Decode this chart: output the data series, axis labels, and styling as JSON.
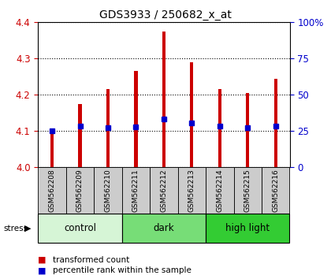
{
  "title": "GDS3933 / 250682_x_at",
  "samples": [
    "GSM562208",
    "GSM562209",
    "GSM562210",
    "GSM562211",
    "GSM562212",
    "GSM562213",
    "GSM562214",
    "GSM562215",
    "GSM562216"
  ],
  "bar_tops": [
    4.101,
    4.175,
    4.215,
    4.265,
    4.375,
    4.29,
    4.215,
    4.205,
    4.245
  ],
  "bar_bottom": 4.0,
  "blue_markers": [
    4.101,
    4.113,
    4.11,
    4.112,
    4.133,
    4.123,
    4.113,
    4.11,
    4.113
  ],
  "ylim": [
    4.0,
    4.4
  ],
  "y2lim": [
    0,
    100
  ],
  "yticks": [
    4.0,
    4.1,
    4.2,
    4.3,
    4.4
  ],
  "y2ticks": [
    0,
    25,
    50,
    75,
    100
  ],
  "y2ticklabels": [
    "0",
    "25",
    "50",
    "75",
    "100%"
  ],
  "groups": [
    {
      "label": "control",
      "start": 0,
      "end": 3,
      "color": "#d6f5d6"
    },
    {
      "label": "dark",
      "start": 3,
      "end": 6,
      "color": "#77dd77"
    },
    {
      "label": "high light",
      "start": 6,
      "end": 9,
      "color": "#33cc33"
    }
  ],
  "bar_color": "#cc0000",
  "blue_color": "#0000cc",
  "grid_color": "#000000",
  "title_color": "#000000",
  "left_tick_color": "#cc0000",
  "right_tick_color": "#0000cc",
  "stress_label": "stress",
  "legend_items": [
    "transformed count",
    "percentile rank within the sample"
  ],
  "sample_box_color": "#cccccc",
  "bar_width": 0.12
}
